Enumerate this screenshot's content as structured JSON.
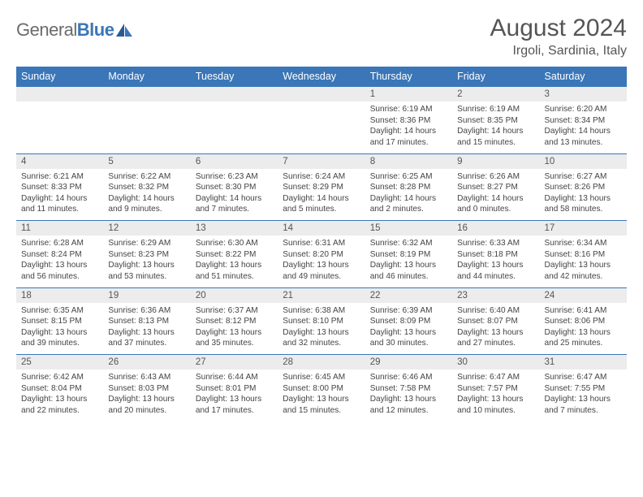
{
  "logo": {
    "word1": "General",
    "word2": "Blue"
  },
  "header": {
    "month_title": "August 2024",
    "location": "Irgoli, Sardinia, Italy"
  },
  "daynames": [
    "Sunday",
    "Monday",
    "Tuesday",
    "Wednesday",
    "Thursday",
    "Friday",
    "Saturday"
  ],
  "colors": {
    "header_bg": "#3a76b8",
    "daynum_bg": "#ececec",
    "row_border": "#3a76b8",
    "text": "#444444",
    "title_text": "#555555"
  },
  "weeks": [
    [
      {
        "n": "",
        "body": ""
      },
      {
        "n": "",
        "body": ""
      },
      {
        "n": "",
        "body": ""
      },
      {
        "n": "",
        "body": ""
      },
      {
        "n": "1",
        "body": "Sunrise: 6:19 AM\nSunset: 8:36 PM\nDaylight: 14 hours and 17 minutes."
      },
      {
        "n": "2",
        "body": "Sunrise: 6:19 AM\nSunset: 8:35 PM\nDaylight: 14 hours and 15 minutes."
      },
      {
        "n": "3",
        "body": "Sunrise: 6:20 AM\nSunset: 8:34 PM\nDaylight: 14 hours and 13 minutes."
      }
    ],
    [
      {
        "n": "4",
        "body": "Sunrise: 6:21 AM\nSunset: 8:33 PM\nDaylight: 14 hours and 11 minutes."
      },
      {
        "n": "5",
        "body": "Sunrise: 6:22 AM\nSunset: 8:32 PM\nDaylight: 14 hours and 9 minutes."
      },
      {
        "n": "6",
        "body": "Sunrise: 6:23 AM\nSunset: 8:30 PM\nDaylight: 14 hours and 7 minutes."
      },
      {
        "n": "7",
        "body": "Sunrise: 6:24 AM\nSunset: 8:29 PM\nDaylight: 14 hours and 5 minutes."
      },
      {
        "n": "8",
        "body": "Sunrise: 6:25 AM\nSunset: 8:28 PM\nDaylight: 14 hours and 2 minutes."
      },
      {
        "n": "9",
        "body": "Sunrise: 6:26 AM\nSunset: 8:27 PM\nDaylight: 14 hours and 0 minutes."
      },
      {
        "n": "10",
        "body": "Sunrise: 6:27 AM\nSunset: 8:26 PM\nDaylight: 13 hours and 58 minutes."
      }
    ],
    [
      {
        "n": "11",
        "body": "Sunrise: 6:28 AM\nSunset: 8:24 PM\nDaylight: 13 hours and 56 minutes."
      },
      {
        "n": "12",
        "body": "Sunrise: 6:29 AM\nSunset: 8:23 PM\nDaylight: 13 hours and 53 minutes."
      },
      {
        "n": "13",
        "body": "Sunrise: 6:30 AM\nSunset: 8:22 PM\nDaylight: 13 hours and 51 minutes."
      },
      {
        "n": "14",
        "body": "Sunrise: 6:31 AM\nSunset: 8:20 PM\nDaylight: 13 hours and 49 minutes."
      },
      {
        "n": "15",
        "body": "Sunrise: 6:32 AM\nSunset: 8:19 PM\nDaylight: 13 hours and 46 minutes."
      },
      {
        "n": "16",
        "body": "Sunrise: 6:33 AM\nSunset: 8:18 PM\nDaylight: 13 hours and 44 minutes."
      },
      {
        "n": "17",
        "body": "Sunrise: 6:34 AM\nSunset: 8:16 PM\nDaylight: 13 hours and 42 minutes."
      }
    ],
    [
      {
        "n": "18",
        "body": "Sunrise: 6:35 AM\nSunset: 8:15 PM\nDaylight: 13 hours and 39 minutes."
      },
      {
        "n": "19",
        "body": "Sunrise: 6:36 AM\nSunset: 8:13 PM\nDaylight: 13 hours and 37 minutes."
      },
      {
        "n": "20",
        "body": "Sunrise: 6:37 AM\nSunset: 8:12 PM\nDaylight: 13 hours and 35 minutes."
      },
      {
        "n": "21",
        "body": "Sunrise: 6:38 AM\nSunset: 8:10 PM\nDaylight: 13 hours and 32 minutes."
      },
      {
        "n": "22",
        "body": "Sunrise: 6:39 AM\nSunset: 8:09 PM\nDaylight: 13 hours and 30 minutes."
      },
      {
        "n": "23",
        "body": "Sunrise: 6:40 AM\nSunset: 8:07 PM\nDaylight: 13 hours and 27 minutes."
      },
      {
        "n": "24",
        "body": "Sunrise: 6:41 AM\nSunset: 8:06 PM\nDaylight: 13 hours and 25 minutes."
      }
    ],
    [
      {
        "n": "25",
        "body": "Sunrise: 6:42 AM\nSunset: 8:04 PM\nDaylight: 13 hours and 22 minutes."
      },
      {
        "n": "26",
        "body": "Sunrise: 6:43 AM\nSunset: 8:03 PM\nDaylight: 13 hours and 20 minutes."
      },
      {
        "n": "27",
        "body": "Sunrise: 6:44 AM\nSunset: 8:01 PM\nDaylight: 13 hours and 17 minutes."
      },
      {
        "n": "28",
        "body": "Sunrise: 6:45 AM\nSunset: 8:00 PM\nDaylight: 13 hours and 15 minutes."
      },
      {
        "n": "29",
        "body": "Sunrise: 6:46 AM\nSunset: 7:58 PM\nDaylight: 13 hours and 12 minutes."
      },
      {
        "n": "30",
        "body": "Sunrise: 6:47 AM\nSunset: 7:57 PM\nDaylight: 13 hours and 10 minutes."
      },
      {
        "n": "31",
        "body": "Sunrise: 6:47 AM\nSunset: 7:55 PM\nDaylight: 13 hours and 7 minutes."
      }
    ]
  ]
}
